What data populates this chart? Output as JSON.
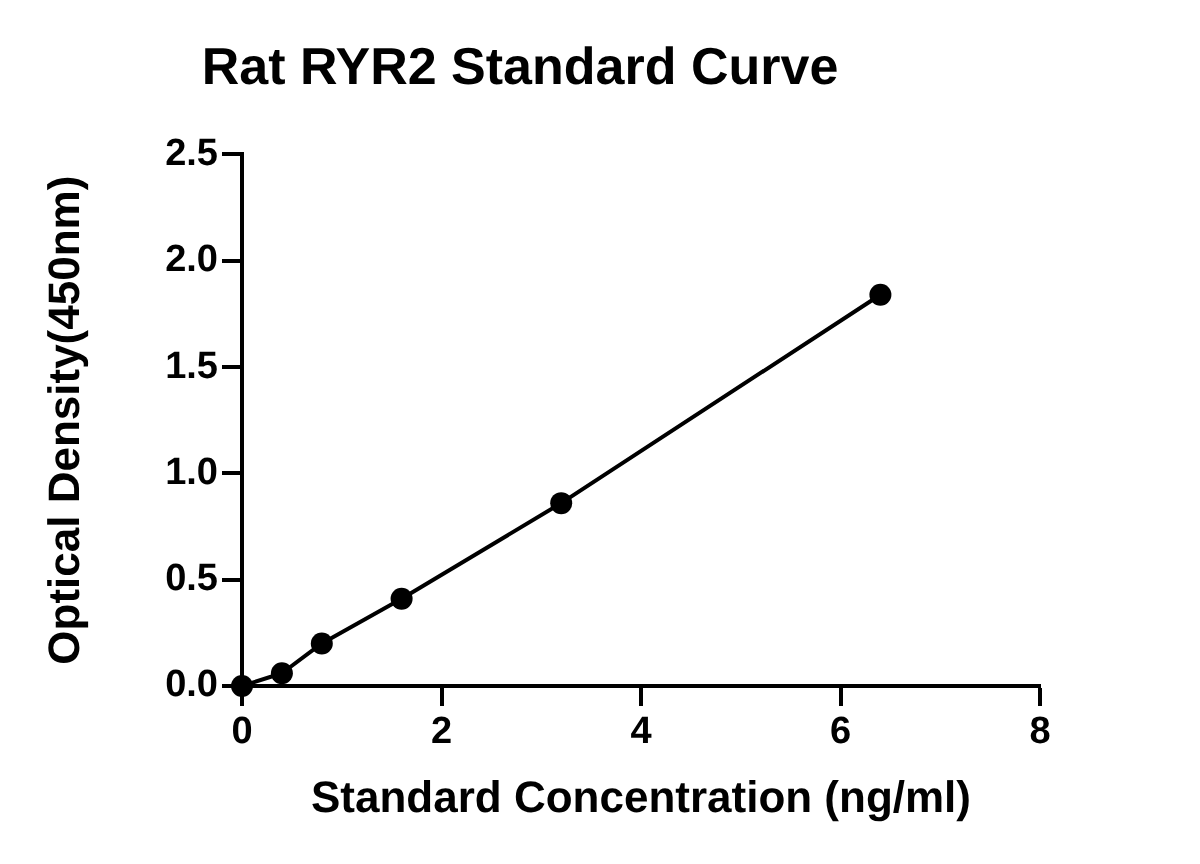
{
  "chart_data": {
    "type": "line",
    "title": "Rat RYR2 Standard Curve",
    "xlabel": "Standard Concentration (ng/ml)",
    "ylabel": "Optical Density(450nm)",
    "x": [
      0,
      0.4,
      0.8,
      1.6,
      3.2,
      6.4
    ],
    "series": [
      {
        "color": "#000000",
        "values": [
          0,
          0.06,
          0.2,
          0.41,
          0.86,
          1.84
        ]
      }
    ],
    "xlim": [
      0,
      8
    ],
    "xticks": [
      0,
      2,
      4,
      6,
      8
    ],
    "ylim": [
      0,
      2.5
    ],
    "yticks": [
      {
        "value": 0,
        "label": "0.0"
      },
      {
        "value": 0.5,
        "label": "0.5"
      },
      {
        "value": 1,
        "label": "1.0"
      },
      {
        "value": 1.5,
        "label": "1.5"
      },
      {
        "value": 2,
        "label": "2.0"
      },
      {
        "value": 2.5,
        "label": "2.5"
      }
    ],
    "grid": false,
    "legend": false,
    "marker": "circle",
    "line_style": "solid"
  }
}
